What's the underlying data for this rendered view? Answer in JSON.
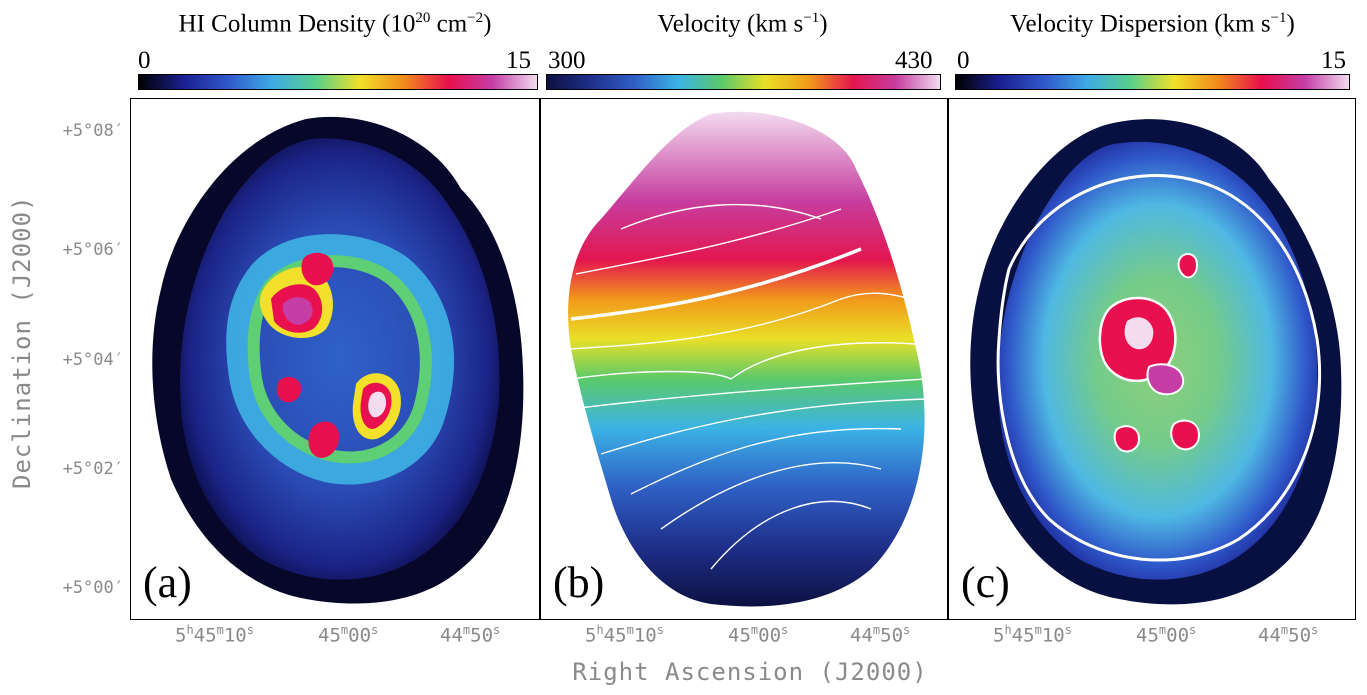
{
  "colorbars": [
    {
      "title_main": "HI Column Density (10",
      "title_sup1": "20",
      "title_mid": " cm",
      "title_sup2": "−2",
      "title_end": ")",
      "min_label": "0",
      "max_label": "15",
      "gradient": [
        "#000000",
        "#1b1f8f",
        "#2f57c9",
        "#3fa9e6",
        "#58d08a",
        "#f2e02a",
        "#f08a1b",
        "#e8104e",
        "#c43ea6",
        "#f3dbf0"
      ]
    },
    {
      "title_main": "Velocity (km s",
      "title_sup1": "−1",
      "title_end": ")",
      "min_label": "300",
      "max_label": "430",
      "gradient": [
        "#0c1040",
        "#1f2f8a",
        "#2f5fc5",
        "#3bb3e6",
        "#5bc96a",
        "#e9e027",
        "#f19a1a",
        "#e4164f",
        "#c53d9f",
        "#f3dbf0"
      ]
    },
    {
      "title_main": "Velocity Dispersion (km s",
      "title_sup1": "−1",
      "title_end": ")",
      "min_label": "0",
      "max_label": "15",
      "gradient": [
        "#000000",
        "#1b1f8f",
        "#2f57c9",
        "#3fa9e6",
        "#58d08a",
        "#f2e02a",
        "#f08a1b",
        "#e8104e",
        "#c43ea6",
        "#f3dbf0"
      ]
    }
  ],
  "panels": [
    {
      "label": "(a)"
    },
    {
      "label": "(b)"
    },
    {
      "label": "(c)"
    }
  ],
  "dec_ticks": [
    "+5°08′",
    "+5°06′",
    "+5°04′",
    "+5°02′",
    "+5°00′"
  ],
  "ra_ticks": [
    {
      "h": "5",
      "h_unit": "h",
      "m": "45",
      "m_unit": "m",
      "s": "10",
      "s_unit": "s"
    },
    {
      "m": "45",
      "m_unit": "m",
      "s": "00",
      "s_unit": "s"
    },
    {
      "m": "44",
      "m_unit": "m",
      "s": "50",
      "s_unit": "s"
    }
  ],
  "axes": {
    "ylabel": "Declination (J2000)",
    "xlabel": "Right Ascension (J2000)"
  }
}
